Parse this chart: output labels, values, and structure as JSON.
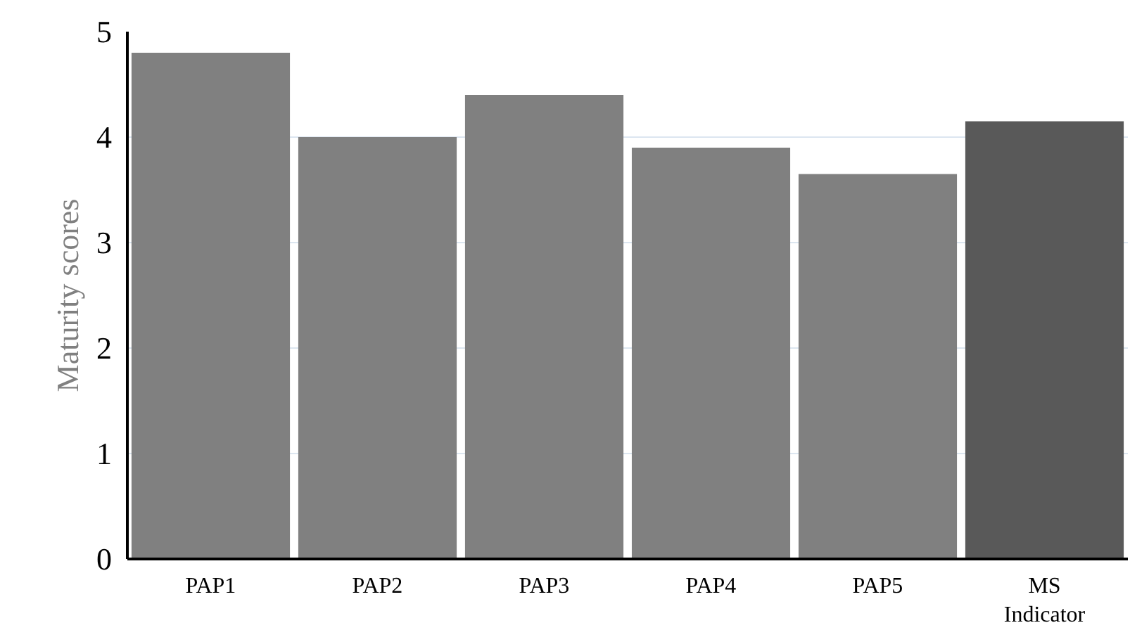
{
  "chart_data": {
    "type": "bar",
    "ylabel": "Maturity scores",
    "categories": [
      "PAP1",
      "PAP2",
      "PAP3",
      "PAP4",
      "PAP5",
      "MS Indicator"
    ],
    "values": [
      4.8,
      4.0,
      4.4,
      3.9,
      3.65,
      4.15
    ],
    "colors": [
      "#808080",
      "#808080",
      "#808080",
      "#808080",
      "#808080",
      "#595959"
    ],
    "ylim": [
      0,
      5
    ],
    "yticks": [
      0,
      1,
      2,
      3,
      4,
      5
    ],
    "grid": "y"
  }
}
